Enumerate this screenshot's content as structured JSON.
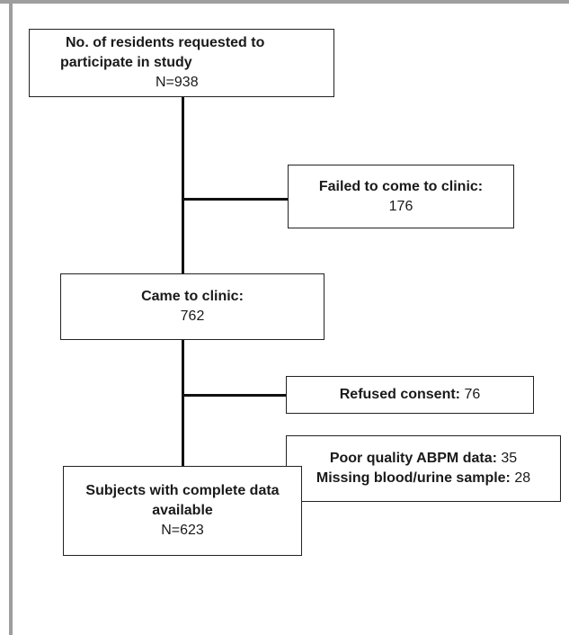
{
  "boxes": {
    "requested": {
      "title_line1": "No. of residents requested to",
      "title_line2": "participate in study",
      "value": "N=938"
    },
    "failed": {
      "title": "Failed to come to clinic:",
      "value": "176"
    },
    "came": {
      "title": "Came to clinic:",
      "value": "762"
    },
    "refused": {
      "title": "Refused consent:",
      "value": " 76"
    },
    "poor_quality": {
      "line1_label": "Poor quality ABPM data:",
      "line1_value": " 35",
      "line2_label": "Missing blood/urine sample:",
      "line2_value": " 28"
    },
    "complete": {
      "title_line1": "Subjects with complete data",
      "title_line2": "available",
      "value": "N=623"
    }
  }
}
